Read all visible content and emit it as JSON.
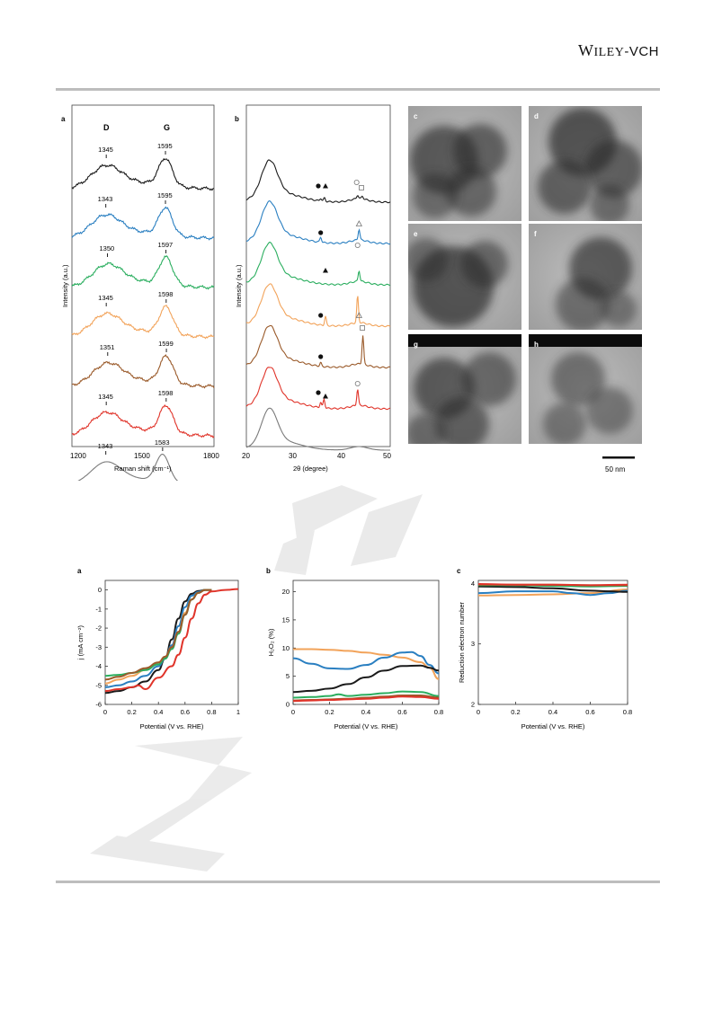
{
  "header": {
    "publisher_w": "W",
    "publisher_iley": "ILEY",
    "publisher_vch": "-VCH"
  },
  "colors": {
    "black": "#1a1a1a",
    "blue": "#2a7fc1",
    "green": "#2bae5f",
    "orange": "#f2a35a",
    "brown": "#9a5a2a",
    "red": "#e0342a",
    "gray": "#7a7a7a"
  },
  "figure1": {
    "raman": {
      "panel_label": "a",
      "xlabel": "Raman shift (cm⁻¹)",
      "ylabel": "Intensity (a.u.)",
      "xticks": [
        "1200",
        "1500",
        "1800"
      ],
      "band_d": "D",
      "band_g": "G",
      "peak_labels": [
        {
          "d": "1345",
          "g": "1595"
        },
        {
          "d": "1343",
          "g": "1595"
        },
        {
          "d": "1350",
          "g": "1597"
        },
        {
          "d": "1345",
          "g": "1598"
        },
        {
          "d": "1351",
          "g": "1599"
        },
        {
          "d": "1345",
          "g": "1598"
        },
        {
          "d": "1343",
          "g": "1583"
        }
      ]
    },
    "xrd": {
      "panel_label": "b",
      "xlabel": "2θ (degree)",
      "ylabel": "Intensity (a.u.)",
      "xticks": [
        "20",
        "30",
        "40",
        "50"
      ]
    },
    "tem": {
      "panel_labels": [
        "c",
        "d",
        "e",
        "f",
        "g",
        "h"
      ],
      "scale_bar": "50 nm"
    }
  },
  "chart_data": [
    {
      "type": "line",
      "panel": "a",
      "xlabel": "Potential (V vs. RHE)",
      "ylabel": "j (mA cm⁻²)",
      "xlim": [
        0,
        1
      ],
      "ylim": [
        -6,
        0.5
      ],
      "xticks": [
        "0",
        "0.2",
        "0.4",
        "0.6",
        "0.8",
        "1"
      ],
      "yticks": [
        "0",
        "-1",
        "-2",
        "-3",
        "-4",
        "-5",
        "-6"
      ],
      "series": [
        {
          "color": "black",
          "x": [
            0,
            0.1,
            0.2,
            0.3,
            0.4,
            0.45,
            0.5,
            0.55,
            0.6,
            0.65,
            0.7,
            0.75,
            0.8
          ],
          "y": [
            -5.4,
            -5.3,
            -5.1,
            -4.8,
            -4.2,
            -3.6,
            -2.6,
            -1.5,
            -0.6,
            -0.2,
            -0.05,
            0,
            0
          ]
        },
        {
          "color": "blue",
          "x": [
            0,
            0.1,
            0.2,
            0.3,
            0.4,
            0.45,
            0.5,
            0.55,
            0.6,
            0.65,
            0.7,
            0.75,
            0.8
          ],
          "y": [
            -5.1,
            -5.0,
            -4.8,
            -4.5,
            -4.0,
            -3.6,
            -2.9,
            -1.9,
            -0.9,
            -0.3,
            -0.1,
            0,
            0
          ]
        },
        {
          "color": "orange",
          "x": [
            0,
            0.1,
            0.2,
            0.3,
            0.4,
            0.45,
            0.5,
            0.55,
            0.6,
            0.65,
            0.7,
            0.75,
            0.8
          ],
          "y": [
            -4.9,
            -4.7,
            -4.5,
            -4.2,
            -3.8,
            -3.5,
            -3.0,
            -2.2,
            -1.2,
            -0.5,
            -0.15,
            0,
            0
          ]
        },
        {
          "color": "green",
          "x": [
            0,
            0.1,
            0.2,
            0.3,
            0.4,
            0.45,
            0.5,
            0.55,
            0.6,
            0.65,
            0.7,
            0.75,
            0.8
          ],
          "y": [
            -4.5,
            -4.45,
            -4.35,
            -4.2,
            -3.9,
            -3.6,
            -3.1,
            -2.3,
            -1.3,
            -0.5,
            -0.15,
            0,
            0
          ]
        },
        {
          "color": "brown",
          "x": [
            0,
            0.1,
            0.2,
            0.3,
            0.4,
            0.45,
            0.5,
            0.55,
            0.6,
            0.65,
            0.7,
            0.75,
            0.8
          ],
          "y": [
            -4.7,
            -4.55,
            -4.35,
            -4.1,
            -3.8,
            -3.5,
            -3.0,
            -2.2,
            -1.3,
            -0.5,
            -0.15,
            0,
            0
          ]
        },
        {
          "color": "red",
          "x": [
            0,
            0.1,
            0.2,
            0.25,
            0.3,
            0.4,
            0.5,
            0.55,
            0.6,
            0.65,
            0.7,
            0.75,
            0.8,
            0.9,
            1.0
          ],
          "y": [
            -5.3,
            -5.2,
            -5.1,
            -5.0,
            -5.2,
            -4.6,
            -4.0,
            -3.4,
            -2.5,
            -1.5,
            -0.7,
            -0.25,
            -0.08,
            0,
            0.05
          ]
        }
      ]
    },
    {
      "type": "line",
      "panel": "b",
      "xlabel": "Potential (V vs. RHE)",
      "ylabel": "H₂O₂ (%)",
      "xlim": [
        0,
        0.8
      ],
      "ylim": [
        0,
        22
      ],
      "xticks": [
        "0",
        "0.2",
        "0.4",
        "0.6",
        "0.8"
      ],
      "yticks": [
        "0",
        "5",
        "10",
        "15",
        "20"
      ],
      "series": [
        {
          "color": "orange",
          "x": [
            0,
            0.1,
            0.2,
            0.3,
            0.4,
            0.5,
            0.6,
            0.7,
            0.75,
            0.8
          ],
          "y": [
            9.8,
            9.8,
            9.7,
            9.5,
            9.2,
            8.8,
            8.3,
            7.5,
            6.5,
            4.5
          ]
        },
        {
          "color": "blue",
          "x": [
            0,
            0.1,
            0.2,
            0.3,
            0.4,
            0.5,
            0.6,
            0.65,
            0.7,
            0.75,
            0.8
          ],
          "y": [
            8.2,
            7.2,
            6.4,
            6.3,
            7.0,
            8.3,
            9.2,
            9.3,
            8.6,
            7.0,
            5.5
          ]
        },
        {
          "color": "black",
          "x": [
            0,
            0.1,
            0.2,
            0.3,
            0.4,
            0.5,
            0.6,
            0.7,
            0.75,
            0.8
          ],
          "y": [
            2.2,
            2.4,
            2.8,
            3.6,
            4.8,
            6.0,
            6.8,
            6.9,
            6.5,
            6.0
          ]
        },
        {
          "color": "green",
          "x": [
            0,
            0.1,
            0.2,
            0.25,
            0.3,
            0.4,
            0.5,
            0.6,
            0.7,
            0.8
          ],
          "y": [
            1.2,
            1.3,
            1.5,
            1.8,
            1.5,
            1.7,
            2.0,
            2.3,
            2.2,
            1.5
          ]
        },
        {
          "color": "brown",
          "x": [
            0,
            0.1,
            0.2,
            0.3,
            0.4,
            0.5,
            0.6,
            0.7,
            0.8
          ],
          "y": [
            0.7,
            0.8,
            0.9,
            1.0,
            1.2,
            1.4,
            1.6,
            1.6,
            1.2
          ]
        },
        {
          "color": "red",
          "x": [
            0,
            0.1,
            0.2,
            0.3,
            0.4,
            0.5,
            0.6,
            0.7,
            0.8
          ],
          "y": [
            0.6,
            0.7,
            0.8,
            0.9,
            1.0,
            1.2,
            1.4,
            1.3,
            1.0
          ]
        }
      ]
    },
    {
      "type": "line",
      "panel": "c",
      "xlabel": "Potential (V vs. RHE)",
      "ylabel": "Reduction electron number",
      "xlim": [
        0,
        0.8
      ],
      "ylim": [
        2,
        4.05
      ],
      "xticks": [
        "0",
        "0.2",
        "0.4",
        "0.6",
        "0.8"
      ],
      "yticks": [
        "2",
        "3",
        "4"
      ],
      "series": [
        {
          "color": "orange",
          "x": [
            0,
            0.2,
            0.4,
            0.6,
            0.8
          ],
          "y": [
            3.8,
            3.81,
            3.82,
            3.84,
            3.9
          ]
        },
        {
          "color": "blue",
          "x": [
            0,
            0.2,
            0.4,
            0.5,
            0.6,
            0.7,
            0.8
          ],
          "y": [
            3.84,
            3.87,
            3.87,
            3.84,
            3.81,
            3.84,
            3.88
          ]
        },
        {
          "color": "black",
          "x": [
            0,
            0.2,
            0.4,
            0.6,
            0.7,
            0.8
          ],
          "y": [
            3.95,
            3.94,
            3.92,
            3.88,
            3.87,
            3.86
          ]
        },
        {
          "color": "green",
          "x": [
            0,
            0.2,
            0.4,
            0.6,
            0.8
          ],
          "y": [
            3.97,
            3.97,
            3.96,
            3.95,
            3.96
          ]
        },
        {
          "color": "brown",
          "x": [
            0,
            0.2,
            0.4,
            0.6,
            0.8
          ],
          "y": [
            3.98,
            3.98,
            3.98,
            3.97,
            3.97
          ]
        },
        {
          "color": "red",
          "x": [
            0,
            0.2,
            0.4,
            0.6,
            0.8
          ],
          "y": [
            3.99,
            3.98,
            3.98,
            3.97,
            3.98
          ]
        }
      ]
    }
  ]
}
